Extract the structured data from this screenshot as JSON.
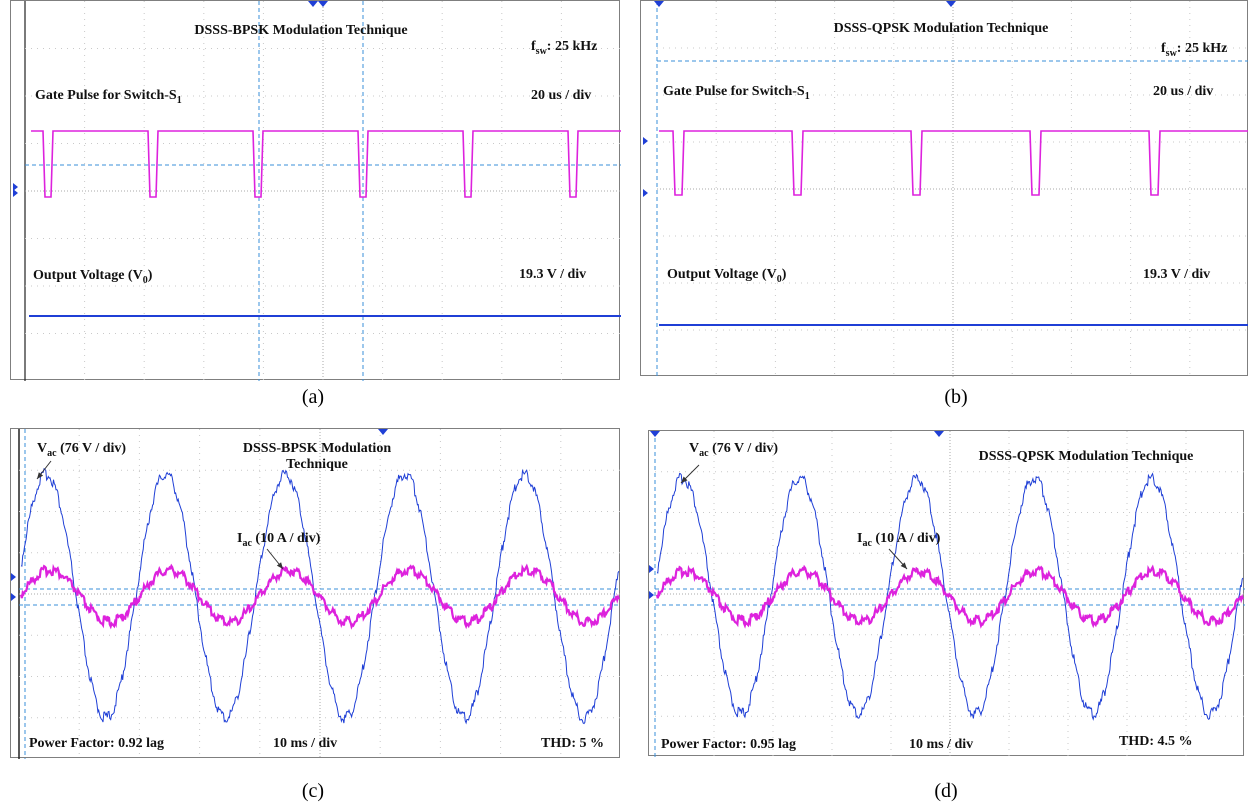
{
  "captions": [
    "(a)",
    "(b)",
    "(c)",
    "(d)"
  ],
  "colors": {
    "magenta": "#dd22dd",
    "blue": "#1f3fd6",
    "grid": "#c9c9c9",
    "cursor": "#3a8fd8"
  },
  "panel_a": {
    "title": "DSSS-BPSK Modulation Technique",
    "fsw_sym": "f",
    "fsw_sub": "sw",
    "fsw_val": ": 25 kHz",
    "gate_label": "Gate Pulse for Switch-S",
    "gate_sub": "1",
    "time_div": "20 us / div",
    "vout_label": "Output Voltage (V",
    "vout_sub": "0",
    "vout_close": ")",
    "volt_div": "19.3 V / div"
  },
  "panel_b": {
    "title": "DSSS-QPSK Modulation Technique",
    "fsw_sym": "f",
    "fsw_sub": "sw",
    "fsw_val": ": 25 kHz",
    "gate_label": "Gate Pulse for Switch-S",
    "gate_sub": "1",
    "time_div": "20 us / div",
    "vout_label": "Output Voltage (V",
    "vout_sub": "0",
    "vout_close": ")",
    "volt_div": "19.3 V / div"
  },
  "panel_c": {
    "title_line1": "DSSS-BPSK Modulation",
    "title_line2": "Technique",
    "vac_sym": "V",
    "vac_sub": "ac",
    "vac_rest": " (76 V / div)",
    "iac_sym": "I",
    "iac_sub": "ac",
    "iac_rest": " (10 A / div)",
    "pf": "Power Factor: 0.92 lag",
    "time_div": "10 ms / div",
    "thd": "THD: 5 %"
  },
  "panel_d": {
    "title": "DSSS-QPSK Modulation Technique",
    "vac_sym": "V",
    "vac_sub": "ac",
    "vac_rest": " (76 V / div)",
    "iac_sym": "I",
    "iac_sub": "ac",
    "iac_rest": " (10 A / div)",
    "pf": "Power Factor: 0.95 lag",
    "time_div": "10 ms / div",
    "thd": "THD: 4.5 %"
  },
  "chart_data": [
    {
      "panel": "a",
      "type": "line",
      "series": [
        {
          "name": "Gate Pulse for Switch-S1",
          "kind": "pulse_train",
          "pulses": 6
        },
        {
          "name": "Output Voltage (V0)",
          "kind": "dc"
        }
      ]
    },
    {
      "panel": "b",
      "type": "line",
      "series": [
        {
          "name": "Gate Pulse for Switch-S1",
          "kind": "pulse_train",
          "pulses": 5
        },
        {
          "name": "Output Voltage (V0)",
          "kind": "dc"
        }
      ]
    },
    {
      "panel": "c",
      "type": "line",
      "series": [
        {
          "name": "Vac (76 V / div)",
          "kind": "sine",
          "cycles": 5,
          "amplitude_div": 3.2
        },
        {
          "name": "Iac (10 A / div)",
          "kind": "sine",
          "cycles": 5,
          "amplitude_div": 1.1
        }
      ]
    },
    {
      "panel": "d",
      "type": "line",
      "series": [
        {
          "name": "Vac (76 V / div)",
          "kind": "sine",
          "cycles": 5,
          "amplitude_div": 3.2
        },
        {
          "name": "Iac (10 A / div)",
          "kind": "sine",
          "cycles": 5,
          "amplitude_div": 1.1
        }
      ]
    }
  ]
}
